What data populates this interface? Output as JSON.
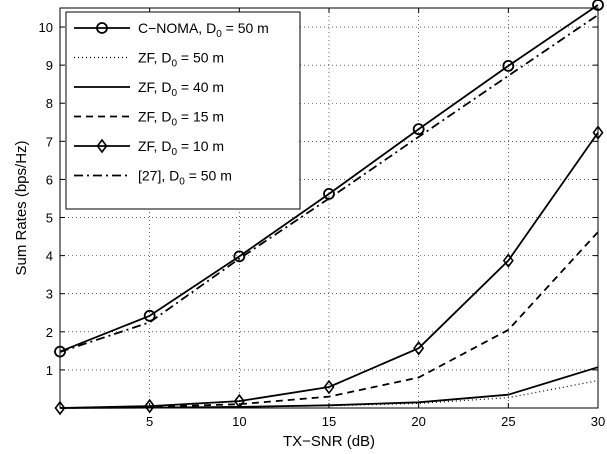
{
  "chart_data": {
    "type": "line",
    "xlabel": "TX−SNR (dB)",
    "ylabel": "Sum Rates (bps/Hz)",
    "xlim": [
      0,
      30
    ],
    "ylim": [
      0,
      10.5
    ],
    "xticks": [
      "5",
      "10",
      "15",
      "20",
      "25",
      "30"
    ],
    "yticks": [
      "1",
      "2",
      "3",
      "4",
      "5",
      "6",
      "7",
      "8",
      "9",
      "10"
    ],
    "grid": true,
    "legend_position": "top-left",
    "x": [
      0,
      5,
      10,
      15,
      20,
      25,
      30
    ],
    "series": [
      {
        "name": "C−NOMA, D",
        "sub": "0",
        "suffix": " = 50 m",
        "style": "solid-circle",
        "values": [
          1.48,
          2.42,
          3.98,
          5.62,
          7.32,
          8.98,
          10.58
        ]
      },
      {
        "name": "ZF, D",
        "sub": "0",
        "suffix": " = 50 m",
        "style": "dotted",
        "values": [
          0.0,
          0.01,
          0.03,
          0.06,
          0.12,
          0.27,
          0.72
        ]
      },
      {
        "name": "ZF, D",
        "sub": "0",
        "suffix": " = 40 m",
        "style": "solid",
        "values": [
          0.0,
          0.01,
          0.03,
          0.07,
          0.15,
          0.35,
          1.07
        ]
      },
      {
        "name": "ZF, D",
        "sub": "0",
        "suffix": " = 15 m",
        "style": "dashed",
        "values": [
          0.0,
          0.03,
          0.1,
          0.3,
          0.8,
          2.05,
          4.62
        ]
      },
      {
        "name": "ZF, D",
        "sub": "0",
        "suffix": " = 10 m",
        "style": "solid-diamond",
        "values": [
          0.0,
          0.05,
          0.18,
          0.55,
          1.57,
          3.87,
          7.23
        ]
      },
      {
        "name": "[27], D",
        "sub": "0",
        "suffix": " = 50 m",
        "style": "dashdot",
        "values": [
          1.47,
          2.25,
          3.92,
          5.5,
          7.12,
          8.72,
          10.32
        ]
      }
    ]
  }
}
